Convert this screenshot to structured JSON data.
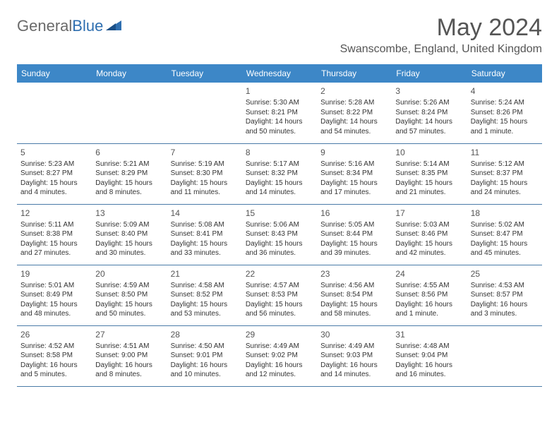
{
  "brand": {
    "part1": "General",
    "part2": "Blue"
  },
  "title": "May 2024",
  "location": "Swanscombe, England, United Kingdom",
  "colors": {
    "header_bg": "#3d87c7",
    "header_text": "#ffffff",
    "rule": "#4a7ba8",
    "body_text": "#333333",
    "title_text": "#555555",
    "logo_gray": "#6a6a6a",
    "logo_blue": "#2f6fb0"
  },
  "day_labels": [
    "Sunday",
    "Monday",
    "Tuesday",
    "Wednesday",
    "Thursday",
    "Friday",
    "Saturday"
  ],
  "weeks": [
    [
      {},
      {},
      {},
      {
        "day": "1",
        "sunrise": "Sunrise: 5:30 AM",
        "sunset": "Sunset: 8:21 PM",
        "daylight1": "Daylight: 14 hours",
        "daylight2": "and 50 minutes."
      },
      {
        "day": "2",
        "sunrise": "Sunrise: 5:28 AM",
        "sunset": "Sunset: 8:22 PM",
        "daylight1": "Daylight: 14 hours",
        "daylight2": "and 54 minutes."
      },
      {
        "day": "3",
        "sunrise": "Sunrise: 5:26 AM",
        "sunset": "Sunset: 8:24 PM",
        "daylight1": "Daylight: 14 hours",
        "daylight2": "and 57 minutes."
      },
      {
        "day": "4",
        "sunrise": "Sunrise: 5:24 AM",
        "sunset": "Sunset: 8:26 PM",
        "daylight1": "Daylight: 15 hours",
        "daylight2": "and 1 minute."
      }
    ],
    [
      {
        "day": "5",
        "sunrise": "Sunrise: 5:23 AM",
        "sunset": "Sunset: 8:27 PM",
        "daylight1": "Daylight: 15 hours",
        "daylight2": "and 4 minutes."
      },
      {
        "day": "6",
        "sunrise": "Sunrise: 5:21 AM",
        "sunset": "Sunset: 8:29 PM",
        "daylight1": "Daylight: 15 hours",
        "daylight2": "and 8 minutes."
      },
      {
        "day": "7",
        "sunrise": "Sunrise: 5:19 AM",
        "sunset": "Sunset: 8:30 PM",
        "daylight1": "Daylight: 15 hours",
        "daylight2": "and 11 minutes."
      },
      {
        "day": "8",
        "sunrise": "Sunrise: 5:17 AM",
        "sunset": "Sunset: 8:32 PM",
        "daylight1": "Daylight: 15 hours",
        "daylight2": "and 14 minutes."
      },
      {
        "day": "9",
        "sunrise": "Sunrise: 5:16 AM",
        "sunset": "Sunset: 8:34 PM",
        "daylight1": "Daylight: 15 hours",
        "daylight2": "and 17 minutes."
      },
      {
        "day": "10",
        "sunrise": "Sunrise: 5:14 AM",
        "sunset": "Sunset: 8:35 PM",
        "daylight1": "Daylight: 15 hours",
        "daylight2": "and 21 minutes."
      },
      {
        "day": "11",
        "sunrise": "Sunrise: 5:12 AM",
        "sunset": "Sunset: 8:37 PM",
        "daylight1": "Daylight: 15 hours",
        "daylight2": "and 24 minutes."
      }
    ],
    [
      {
        "day": "12",
        "sunrise": "Sunrise: 5:11 AM",
        "sunset": "Sunset: 8:38 PM",
        "daylight1": "Daylight: 15 hours",
        "daylight2": "and 27 minutes."
      },
      {
        "day": "13",
        "sunrise": "Sunrise: 5:09 AM",
        "sunset": "Sunset: 8:40 PM",
        "daylight1": "Daylight: 15 hours",
        "daylight2": "and 30 minutes."
      },
      {
        "day": "14",
        "sunrise": "Sunrise: 5:08 AM",
        "sunset": "Sunset: 8:41 PM",
        "daylight1": "Daylight: 15 hours",
        "daylight2": "and 33 minutes."
      },
      {
        "day": "15",
        "sunrise": "Sunrise: 5:06 AM",
        "sunset": "Sunset: 8:43 PM",
        "daylight1": "Daylight: 15 hours",
        "daylight2": "and 36 minutes."
      },
      {
        "day": "16",
        "sunrise": "Sunrise: 5:05 AM",
        "sunset": "Sunset: 8:44 PM",
        "daylight1": "Daylight: 15 hours",
        "daylight2": "and 39 minutes."
      },
      {
        "day": "17",
        "sunrise": "Sunrise: 5:03 AM",
        "sunset": "Sunset: 8:46 PM",
        "daylight1": "Daylight: 15 hours",
        "daylight2": "and 42 minutes."
      },
      {
        "day": "18",
        "sunrise": "Sunrise: 5:02 AM",
        "sunset": "Sunset: 8:47 PM",
        "daylight1": "Daylight: 15 hours",
        "daylight2": "and 45 minutes."
      }
    ],
    [
      {
        "day": "19",
        "sunrise": "Sunrise: 5:01 AM",
        "sunset": "Sunset: 8:49 PM",
        "daylight1": "Daylight: 15 hours",
        "daylight2": "and 48 minutes."
      },
      {
        "day": "20",
        "sunrise": "Sunrise: 4:59 AM",
        "sunset": "Sunset: 8:50 PM",
        "daylight1": "Daylight: 15 hours",
        "daylight2": "and 50 minutes."
      },
      {
        "day": "21",
        "sunrise": "Sunrise: 4:58 AM",
        "sunset": "Sunset: 8:52 PM",
        "daylight1": "Daylight: 15 hours",
        "daylight2": "and 53 minutes."
      },
      {
        "day": "22",
        "sunrise": "Sunrise: 4:57 AM",
        "sunset": "Sunset: 8:53 PM",
        "daylight1": "Daylight: 15 hours",
        "daylight2": "and 56 minutes."
      },
      {
        "day": "23",
        "sunrise": "Sunrise: 4:56 AM",
        "sunset": "Sunset: 8:54 PM",
        "daylight1": "Daylight: 15 hours",
        "daylight2": "and 58 minutes."
      },
      {
        "day": "24",
        "sunrise": "Sunrise: 4:55 AM",
        "sunset": "Sunset: 8:56 PM",
        "daylight1": "Daylight: 16 hours",
        "daylight2": "and 1 minute."
      },
      {
        "day": "25",
        "sunrise": "Sunrise: 4:53 AM",
        "sunset": "Sunset: 8:57 PM",
        "daylight1": "Daylight: 16 hours",
        "daylight2": "and 3 minutes."
      }
    ],
    [
      {
        "day": "26",
        "sunrise": "Sunrise: 4:52 AM",
        "sunset": "Sunset: 8:58 PM",
        "daylight1": "Daylight: 16 hours",
        "daylight2": "and 5 minutes."
      },
      {
        "day": "27",
        "sunrise": "Sunrise: 4:51 AM",
        "sunset": "Sunset: 9:00 PM",
        "daylight1": "Daylight: 16 hours",
        "daylight2": "and 8 minutes."
      },
      {
        "day": "28",
        "sunrise": "Sunrise: 4:50 AM",
        "sunset": "Sunset: 9:01 PM",
        "daylight1": "Daylight: 16 hours",
        "daylight2": "and 10 minutes."
      },
      {
        "day": "29",
        "sunrise": "Sunrise: 4:49 AM",
        "sunset": "Sunset: 9:02 PM",
        "daylight1": "Daylight: 16 hours",
        "daylight2": "and 12 minutes."
      },
      {
        "day": "30",
        "sunrise": "Sunrise: 4:49 AM",
        "sunset": "Sunset: 9:03 PM",
        "daylight1": "Daylight: 16 hours",
        "daylight2": "and 14 minutes."
      },
      {
        "day": "31",
        "sunrise": "Sunrise: 4:48 AM",
        "sunset": "Sunset: 9:04 PM",
        "daylight1": "Daylight: 16 hours",
        "daylight2": "and 16 minutes."
      },
      {}
    ]
  ]
}
